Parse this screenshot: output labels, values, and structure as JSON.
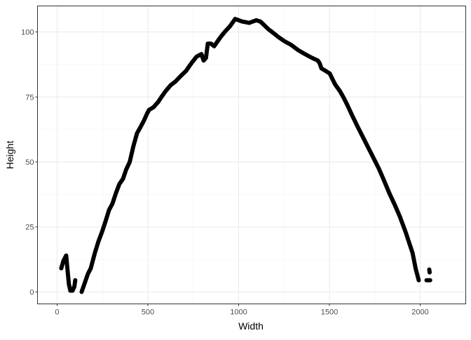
{
  "chart_data": {
    "type": "scatter",
    "title": "",
    "xlabel": "Width",
    "ylabel": "Height",
    "xlim": [
      -108,
      2251
    ],
    "ylim": [
      -4.6,
      110
    ],
    "x_ticks": [
      0,
      500,
      1000,
      1500,
      2000
    ],
    "y_ticks": [
      0,
      25,
      50,
      75,
      100
    ],
    "x_tick_labels": [
      "0",
      "500",
      "1000",
      "1500",
      "2000"
    ],
    "y_tick_labels": [
      "0",
      "25",
      "50",
      "75",
      "100"
    ],
    "grid": true,
    "theme": "bw",
    "point_color": "#000000",
    "segments": [
      [
        [
          23,
          9.1
        ],
        [
          35,
          12
        ],
        [
          50,
          14
        ],
        [
          58,
          8
        ],
        [
          65,
          3
        ],
        [
          73,
          0.5
        ],
        [
          85,
          0.5
        ],
        [
          95,
          2
        ],
        [
          100,
          4.5
        ]
      ],
      [
        [
          135,
          0
        ],
        [
          150,
          3
        ],
        [
          170,
          7
        ],
        [
          185,
          9
        ],
        [
          208,
          15
        ],
        [
          228,
          19.5
        ],
        [
          247,
          23
        ],
        [
          266,
          27
        ],
        [
          286,
          31.5
        ],
        [
          305,
          34
        ],
        [
          324,
          38
        ],
        [
          343,
          41.5
        ],
        [
          363,
          43.5
        ],
        [
          380,
          47
        ],
        [
          400,
          50
        ],
        [
          420,
          56
        ],
        [
          440,
          61
        ],
        [
          460,
          63.5
        ],
        [
          479,
          66
        ],
        [
          495,
          68.5
        ],
        [
          506,
          70
        ],
        [
          530,
          71
        ],
        [
          556,
          73
        ],
        [
          575,
          75
        ],
        [
          595,
          77
        ],
        [
          625,
          79.5
        ],
        [
          653,
          81
        ],
        [
          680,
          83
        ],
        [
          710,
          85
        ],
        [
          740,
          88
        ],
        [
          768,
          90.5
        ],
        [
          795,
          91.5
        ],
        [
          807,
          89
        ],
        [
          820,
          90
        ],
        [
          830,
          95.5
        ],
        [
          848,
          95.5
        ],
        [
          865,
          94.5
        ],
        [
          880,
          96
        ],
        [
          900,
          98
        ],
        [
          923,
          100
        ],
        [
          950,
          102
        ],
        [
          981,
          105
        ],
        [
          1020,
          104
        ],
        [
          1058,
          103.5
        ],
        [
          1097,
          104.5
        ],
        [
          1120,
          104
        ],
        [
          1135,
          103
        ],
        [
          1165,
          101
        ],
        [
          1193,
          99.5
        ],
        [
          1220,
          98
        ],
        [
          1251,
          96.5
        ],
        [
          1290,
          95
        ],
        [
          1328,
          93
        ],
        [
          1365,
          91.5
        ],
        [
          1405,
          90
        ],
        [
          1436,
          89
        ],
        [
          1446,
          88
        ],
        [
          1456,
          86
        ],
        [
          1480,
          85
        ],
        [
          1502,
          84
        ],
        [
          1530,
          80
        ],
        [
          1560,
          77
        ],
        [
          1580,
          74.5
        ],
        [
          1598,
          72
        ],
        [
          1628,
          67.5
        ],
        [
          1656,
          63.5
        ],
        [
          1685,
          59.5
        ],
        [
          1714,
          55.5
        ],
        [
          1743,
          51.5
        ],
        [
          1772,
          47.5
        ],
        [
          1800,
          43
        ],
        [
          1830,
          38
        ],
        [
          1860,
          33.5
        ],
        [
          1888,
          29
        ],
        [
          1920,
          23
        ],
        [
          1958,
          15
        ],
        [
          1975,
          9
        ],
        [
          1992,
          4.5
        ]
      ],
      [
        [
          2035,
          4.5
        ],
        [
          2045,
          4.5
        ],
        [
          2055,
          4.5
        ]
      ],
      [
        [
          2050,
          8.6
        ],
        [
          2052,
          7.5
        ]
      ]
    ]
  }
}
